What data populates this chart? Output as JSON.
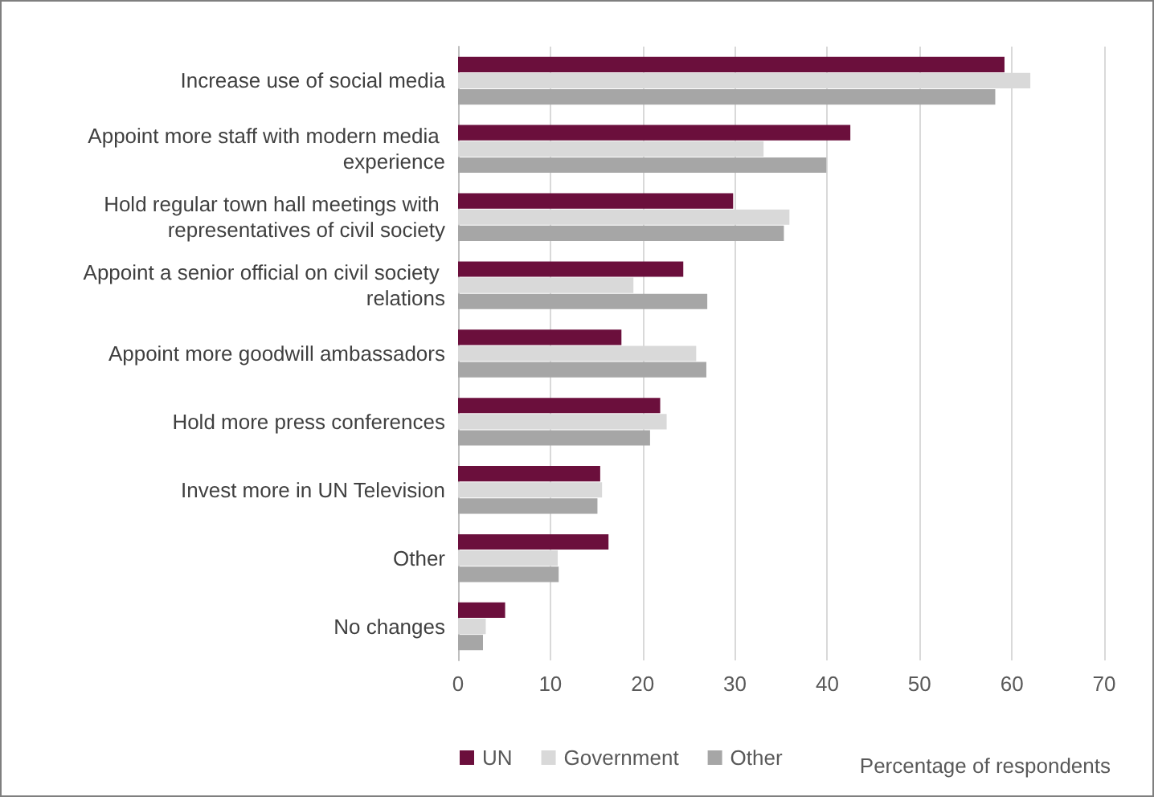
{
  "chart_data": {
    "type": "bar",
    "orientation": "horizontal",
    "xlabel": "Percentage of respondents",
    "categories": [
      "Increase use of social media",
      "Appoint more staff with modern media experience",
      "Hold regular town hall meetings with representatives of civil society",
      "Appoint a senior official on civil society relations",
      "Appoint more goodwill ambassadors",
      "Hold more press conferences",
      "Invest more in UN Television",
      "Other",
      "No changes"
    ],
    "series": [
      {
        "name": "UN",
        "color": "#6b0f3c",
        "values": [
          59.2,
          42.5,
          29.8,
          24.4,
          17.7,
          21.9,
          15.4,
          16.3,
          5.1
        ]
      },
      {
        "name": "Government",
        "color": "#d9d9d9",
        "values": [
          62,
          33.1,
          35.9,
          19,
          25.8,
          22.6,
          15.6,
          10.8,
          3
        ]
      },
      {
        "name": "Other",
        "color": "#a6a6a6",
        "values": [
          58.2,
          39.9,
          35.3,
          27,
          26.9,
          20.8,
          15.1,
          10.9,
          2.7
        ]
      }
    ],
    "xlim": [
      0,
      70
    ],
    "xticks": [
      0,
      10,
      20,
      30,
      40,
      50,
      60,
      70
    ],
    "grid": "x",
    "legend": "bottom left"
  }
}
